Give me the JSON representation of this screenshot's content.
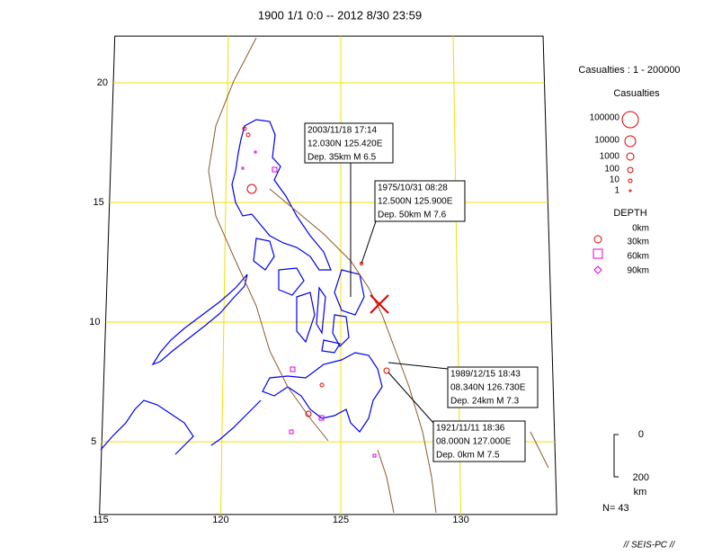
{
  "title": "1900 1/1 0:0 -- 2012 8/30 23:59",
  "map": {
    "lat_labels": [
      20,
      15,
      10,
      5
    ],
    "lon_labels": [
      115,
      120,
      125,
      130
    ]
  },
  "legend": {
    "casualties_range": "Casualties : 1 -  200000",
    "casualties_title": "Casualties",
    "casualties_levels": [
      "100000",
      "10000",
      "1000",
      "100",
      "10",
      "1"
    ],
    "depth_title": "DEPTH",
    "depth_levels": [
      "0km",
      "30km",
      "60km",
      "90km"
    ]
  },
  "events": [
    {
      "lines": [
        "2003/11/18 17:14",
        "12.030N  125.420E",
        "Dep. 35km   M 6.5"
      ]
    },
    {
      "lines": [
        "1975/10/31 08:28",
        "12.500N  125.900E",
        "Dep. 50km   M 7.6"
      ]
    },
    {
      "lines": [
        "1989/12/15 18:43",
        "08.340N  126.730E",
        "Dep. 24km   M 7.3"
      ]
    },
    {
      "lines": [
        "1921/11/11 18:36",
        "08.000N  127.000E",
        "Dep. 0km    M 7.5"
      ]
    }
  ],
  "depth_scale": {
    "top": "0",
    "bottom": "200",
    "unit": "km"
  },
  "count": "N= 43",
  "footer": "// SEIS-PC //"
}
